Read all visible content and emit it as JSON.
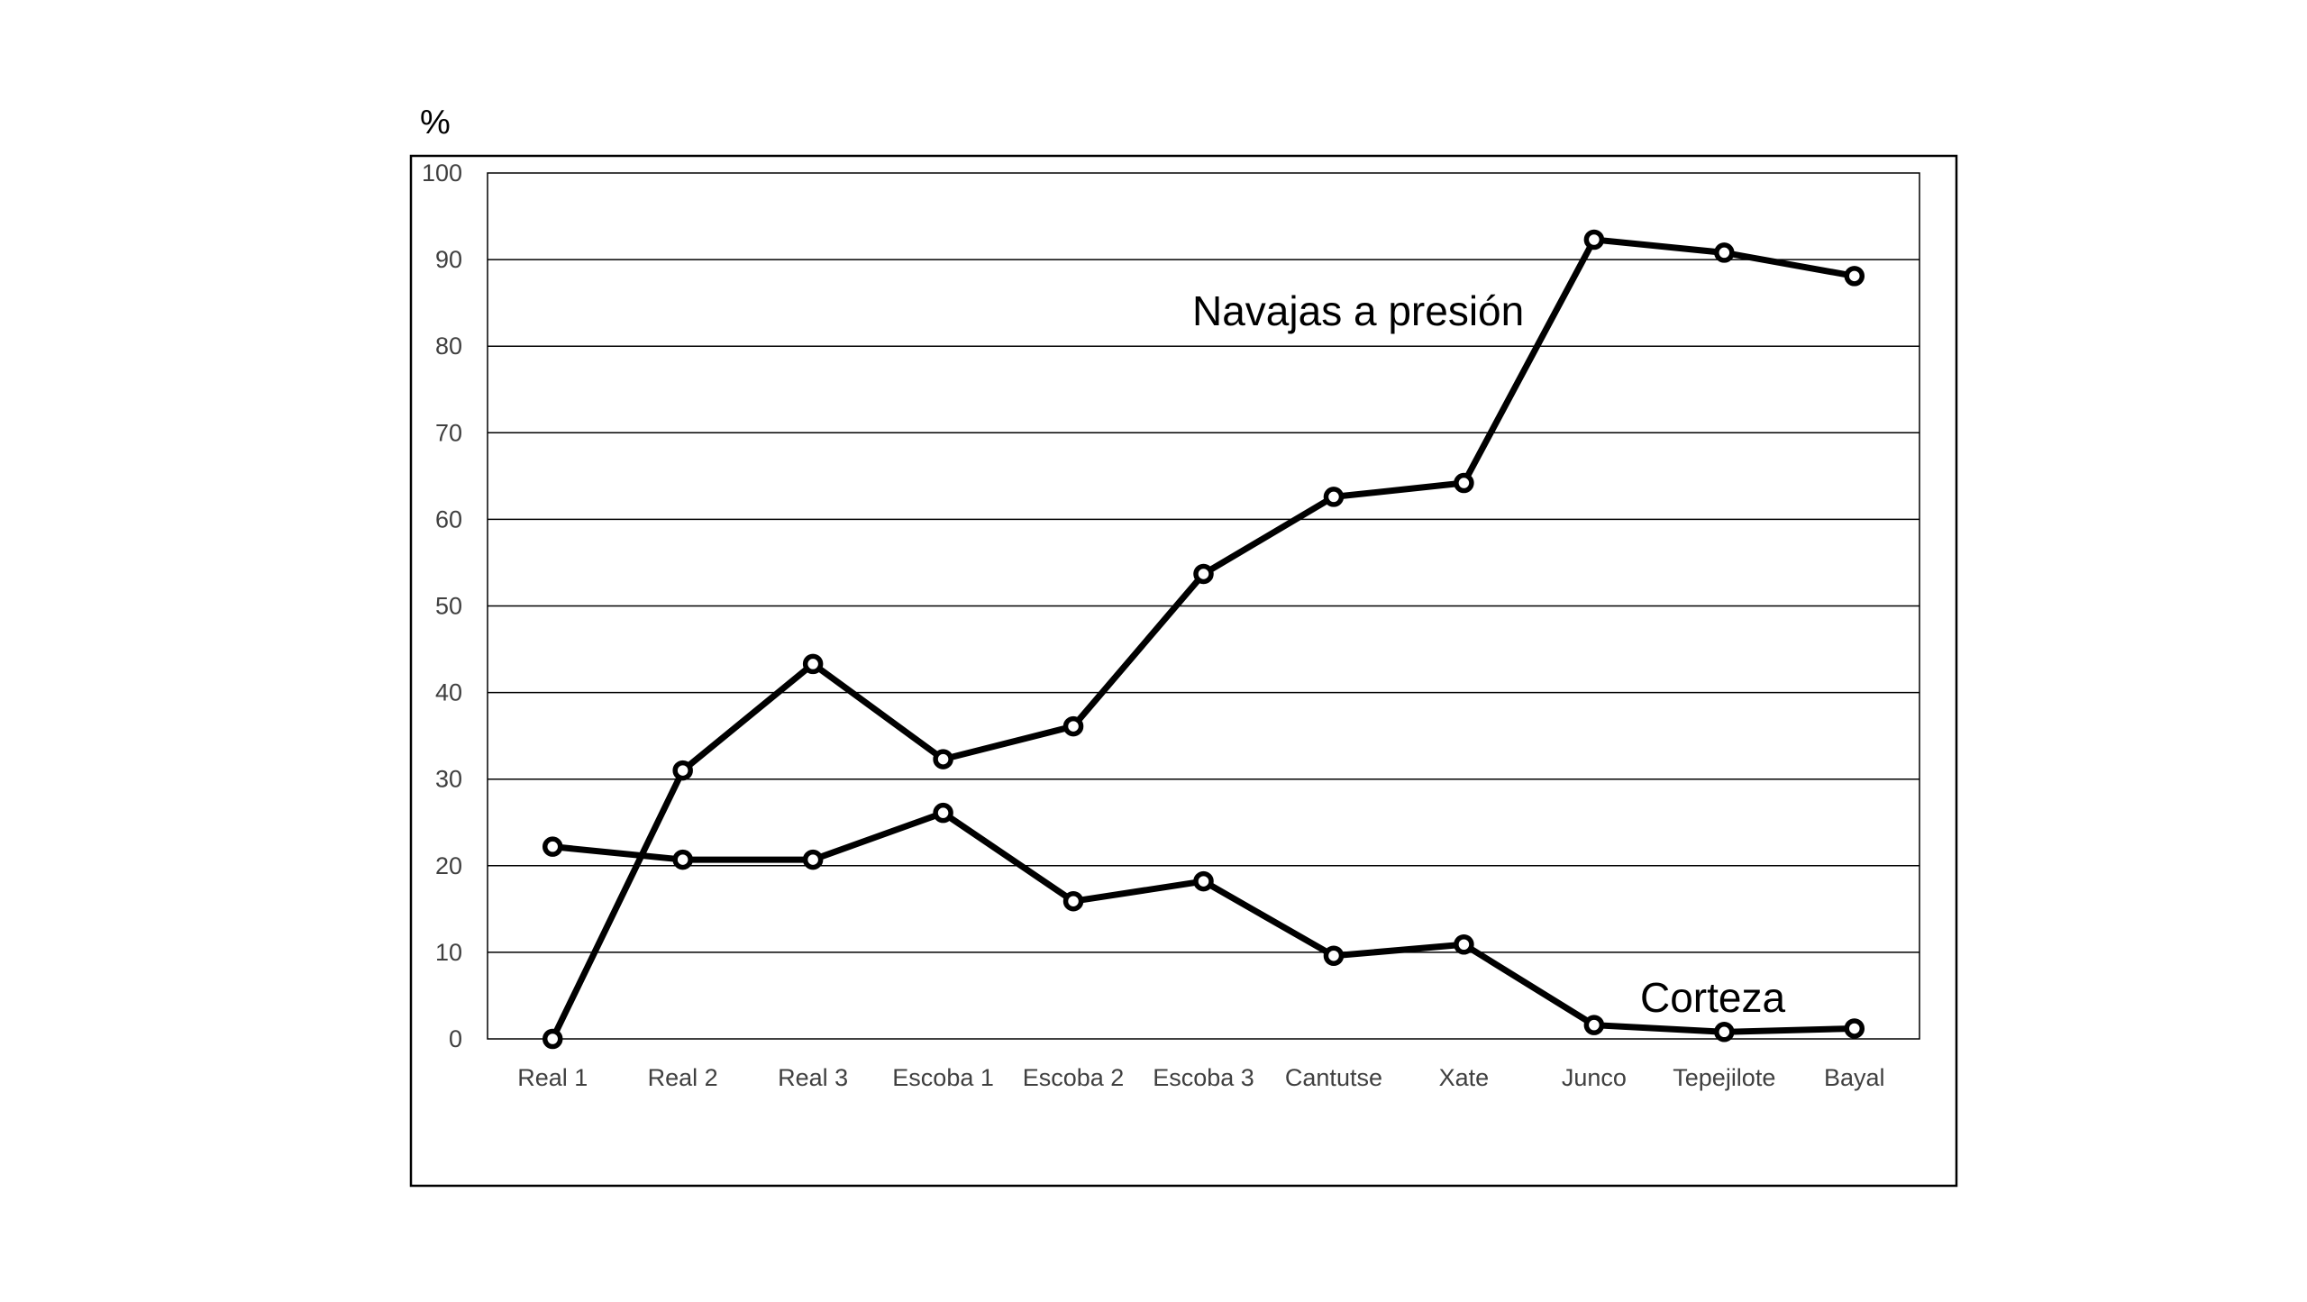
{
  "chart_data": {
    "type": "line",
    "title": "",
    "xlabel": "",
    "ylabel": "%",
    "ylim": [
      0,
      100
    ],
    "y_ticks": [
      "0",
      "10",
      "20",
      "30",
      "40",
      "50",
      "60",
      "70",
      "80",
      "90",
      "100"
    ],
    "grid": "horizontal",
    "legend": "none (series labelled directly on chart)",
    "categories": [
      "Real 1",
      "Real 2",
      "Real 3",
      "Escoba 1",
      "Escoba 2",
      "Escoba 3",
      "Cantutse",
      "Xate",
      "Junco",
      "Tepejilote",
      "Bayal"
    ],
    "series": [
      {
        "name": "Navajas a presión",
        "color": "#000000",
        "values": [
          0,
          31,
          43.3,
          32.3,
          36.1,
          53.7,
          62.6,
          64.2,
          92.3,
          90.8,
          88.1
        ]
      },
      {
        "name": "Corteza",
        "color": "#000000",
        "values": [
          22.2,
          20.7,
          20.7,
          26.1,
          15.9,
          18.2,
          9.6,
          10.9,
          1.6,
          0.8,
          1.2
        ]
      }
    ]
  }
}
